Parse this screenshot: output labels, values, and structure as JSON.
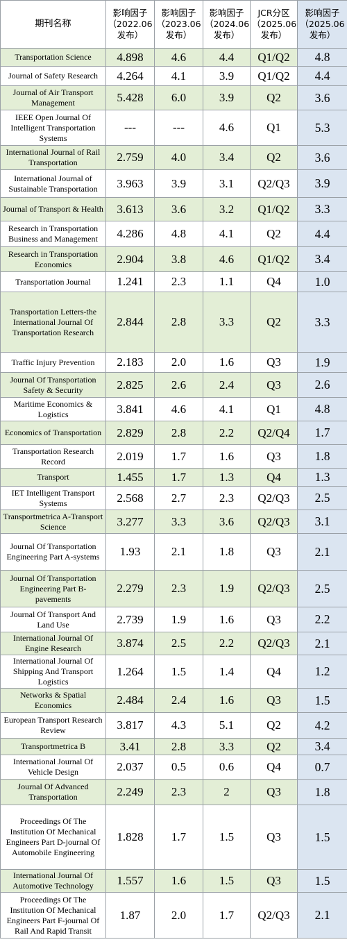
{
  "header": {
    "name": "期刊名称",
    "c1": [
      "影响因子",
      "（2022.06",
      "发布）"
    ],
    "c2": [
      "影响因子",
      "（2023.06",
      "发布）"
    ],
    "c3": [
      "影响因子",
      "（2024.06",
      "发布）"
    ],
    "c4": [
      "JCR分区",
      "（2025.06",
      "发布）"
    ],
    "c5": [
      "影响因子",
      "（2025.06",
      "发布）"
    ]
  },
  "colors": {
    "green_row": "#e3eed6",
    "blue_column": "#dbe5f1",
    "border": "#9aa0a6"
  },
  "rows": [
    {
      "name": "Transportation Science",
      "if2022": "4.898",
      "if2023": "4.6",
      "if2024": "4.4",
      "jcr": "Q1/Q2",
      "if2025": "4.8"
    },
    {
      "name": "Journal of Safety Research",
      "if2022": "4.264",
      "if2023": "4.1",
      "if2024": "3.9",
      "jcr": "Q1/Q2",
      "if2025": "4.4"
    },
    {
      "name": "Journal of Air Transport Management",
      "if2022": "5.428",
      "if2023": "6.0",
      "if2024": "3.9",
      "jcr": "Q2",
      "if2025": "3.6"
    },
    {
      "name": "IEEE Open Journal Of Intelligent Transportation Systems",
      "if2022": "---",
      "if2023": "---",
      "if2024": "4.6",
      "jcr": "Q1",
      "if2025": "5.3"
    },
    {
      "name": "International Journal of Rail Transportation",
      "if2022": "2.759",
      "if2023": "4.0",
      "if2024": "3.4",
      "jcr": "Q2",
      "if2025": "3.6"
    },
    {
      "name": "International Journal of Sustainable Transportation",
      "if2022": "3.963",
      "if2023": "3.9",
      "if2024": "3.1",
      "jcr": "Q2/Q3",
      "if2025": "3.9"
    },
    {
      "name": "Journal of Transport & Health",
      "if2022": "3.613",
      "if2023": "3.6",
      "if2024": "3.2",
      "jcr": "Q1/Q2",
      "if2025": "3.3"
    },
    {
      "name": "Research in Transportation Business and Management",
      "if2022": "4.286",
      "if2023": "4.8",
      "if2024": "4.1",
      "jcr": "Q2",
      "if2025": "4.4"
    },
    {
      "name": "Research in Transportation Economics",
      "if2022": "2.904",
      "if2023": "3.8",
      "if2024": "4.6",
      "jcr": "Q1/Q2",
      "if2025": "3.4"
    },
    {
      "name": "Transportation Journal",
      "if2022": "1.241",
      "if2023": "2.3",
      "if2024": "1.1",
      "jcr": "Q4",
      "if2025": "1.0"
    },
    {
      "name": "Transportation Letters-the International Journal Of Transportation Research",
      "if2022": "2.844",
      "if2023": "2.8",
      "if2024": "3.3",
      "jcr": "Q2",
      "if2025": "3.3"
    },
    {
      "name": "Traffic Injury Prevention",
      "if2022": "2.183",
      "if2023": "2.0",
      "if2024": "1.6",
      "jcr": "Q3",
      "if2025": "1.9"
    },
    {
      "name": "Journal Of Transportation Safety & Security",
      "if2022": "2.825",
      "if2023": "2.6",
      "if2024": "2.4",
      "jcr": "Q3",
      "if2025": "2.6"
    },
    {
      "name": "Maritime Economics & Logistics",
      "if2022": "3.841",
      "if2023": "4.6",
      "if2024": "4.1",
      "jcr": "Q1",
      "if2025": "4.8"
    },
    {
      "name": "Economics of Transportation",
      "if2022": "2.829",
      "if2023": "2.8",
      "if2024": "2.2",
      "jcr": "Q2/Q4",
      "if2025": "1.7"
    },
    {
      "name": "Transportation Research Record",
      "if2022": "2.019",
      "if2023": "1.7",
      "if2024": "1.6",
      "jcr": "Q3",
      "if2025": "1.8"
    },
    {
      "name": "Transport",
      "if2022": "1.455",
      "if2023": "1.7",
      "if2024": "1.3",
      "jcr": "Q4",
      "if2025": "1.3"
    },
    {
      "name": "IET Intelligent Transport Systems",
      "if2022": "2.568",
      "if2023": "2.7",
      "if2024": "2.3",
      "jcr": "Q2/Q3",
      "if2025": "2.5"
    },
    {
      "name": "Transportmetrica A-Transport Science",
      "if2022": "3.277",
      "if2023": "3.3",
      "if2024": "3.6",
      "jcr": "Q2/Q3",
      "if2025": "3.1"
    },
    {
      "name": "Journal Of Transportation Engineering Part A-systems",
      "if2022": "1.93",
      "if2023": "2.1",
      "if2024": "1.8",
      "jcr": "Q3",
      "if2025": "2.1"
    },
    {
      "name": "Journal Of Transportation Engineering Part B-pavements",
      "if2022": "2.279",
      "if2023": "2.3",
      "if2024": "1.9",
      "jcr": "Q2/Q3",
      "if2025": "2.5"
    },
    {
      "name": "Journal Of Transport And Land Use",
      "if2022": "2.739",
      "if2023": "1.9",
      "if2024": "1.6",
      "jcr": "Q3",
      "if2025": "2.2"
    },
    {
      "name": "International Journal Of Engine Research",
      "if2022": "3.874",
      "if2023": "2.5",
      "if2024": "2.2",
      "jcr": "Q2/Q3",
      "if2025": "2.1"
    },
    {
      "name": "International Journal Of Shipping And Transport Logistics",
      "if2022": "1.264",
      "if2023": "1.5",
      "if2024": "1.4",
      "jcr": "Q4",
      "if2025": "1.2"
    },
    {
      "name": "Networks & Spatial Economics",
      "if2022": "2.484",
      "if2023": "2.4",
      "if2024": "1.6",
      "jcr": "Q3",
      "if2025": "1.5"
    },
    {
      "name": "European Transport Research Review",
      "if2022": "3.817",
      "if2023": "4.3",
      "if2024": "5.1",
      "jcr": "Q2",
      "if2025": "4.2"
    },
    {
      "name": "Transportmetrica B",
      "if2022": "3.41",
      "if2023": "2.8",
      "if2024": "3.3",
      "jcr": "Q2",
      "if2025": "3.4"
    },
    {
      "name": "International Journal Of Vehicle Design",
      "if2022": "2.037",
      "if2023": "0.5",
      "if2024": "0.6",
      "jcr": "Q4",
      "if2025": "0.7"
    },
    {
      "name": "Journal Of Advanced Transportation",
      "if2022": "2.249",
      "if2023": "2.3",
      "if2024": "2",
      "jcr": "Q3",
      "if2025": "1.8"
    },
    {
      "name": "Proceedings Of The Institution Of Mechanical Engineers Part D-journal Of Automobile Engineering",
      "if2022": "1.828",
      "if2023": "1.7",
      "if2024": "1.5",
      "jcr": "Q3",
      "if2025": "1.5"
    },
    {
      "name": "International Journal Of Automotive Technology",
      "if2022": "1.557",
      "if2023": "1.6",
      "if2024": "1.5",
      "jcr": "Q3",
      "if2025": "1.5"
    },
    {
      "name": "Proceedings Of The Institution Of Mechanical Engineers Part F-journal Of Rail And Rapid Transit",
      "if2022": "1.87",
      "if2023": "2.0",
      "if2024": "1.7",
      "jcr": "Q2/Q3",
      "if2025": "2.1"
    }
  ]
}
